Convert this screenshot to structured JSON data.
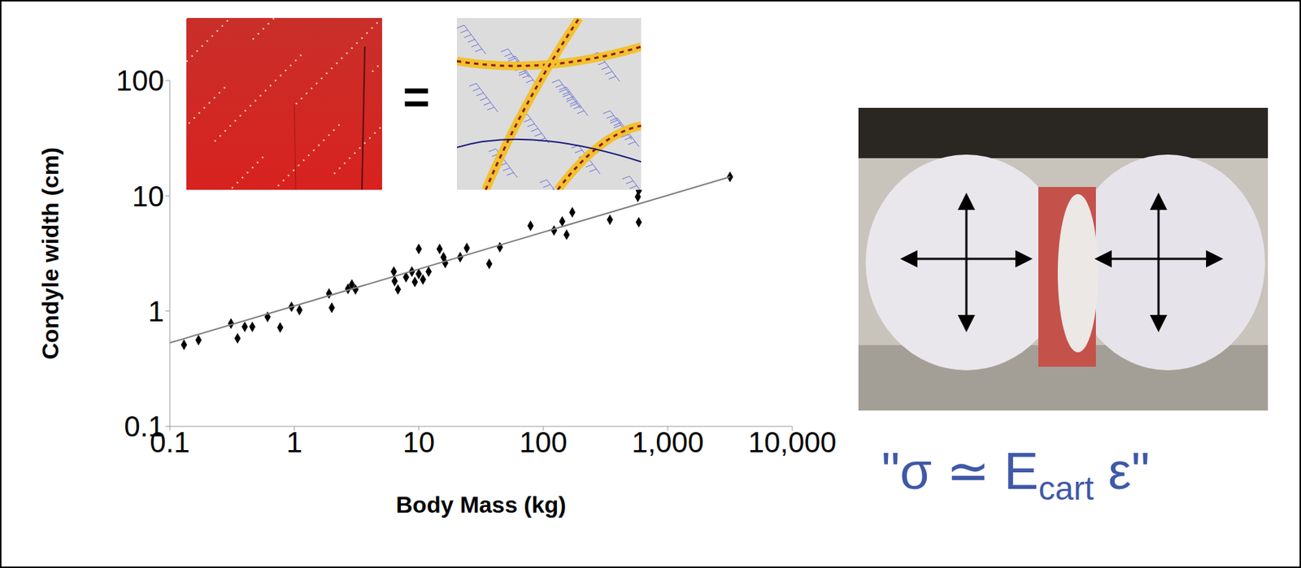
{
  "chart_data": {
    "type": "scatter",
    "xlabel": "Body Mass (kg)",
    "ylabel": "Condyle width (cm)",
    "log": true,
    "grid": false,
    "xlim": [
      0.1,
      10000
    ],
    "ylim": [
      0.1,
      100
    ],
    "xticks": [
      0.1,
      1,
      10,
      100,
      {
        "value": 1000,
        "label": "1,000"
      },
      {
        "value": 10000,
        "label": "10,000"
      }
    ],
    "yticks": [
      0.1,
      1,
      10,
      100
    ],
    "series": [
      {
        "type": "scatter",
        "marker": "diamond",
        "color": "#000000",
        "x": [
          0.13,
          0.17,
          0.31,
          0.35,
          0.4,
          0.46,
          0.61,
          0.77,
          0.95,
          1.1,
          1.9,
          2.0,
          2.7,
          2.9,
          3.1,
          6.3,
          6.4,
          6.8,
          7.9,
          8.8,
          9.3,
          10,
          10,
          10.8,
          12,
          14.7,
          15.8,
          16.3,
          21.5,
          24.3,
          36.8,
          44.8,
          79,
          122,
          142,
          154,
          171,
          343,
          585,
          585,
          575,
          3162
        ],
        "values": [
          0.51,
          0.56,
          0.78,
          0.58,
          0.73,
          0.73,
          0.89,
          0.72,
          1.09,
          1.02,
          1.42,
          1.07,
          1.56,
          1.7,
          1.54,
          2.2,
          1.82,
          1.54,
          1.97,
          2.2,
          1.79,
          3.46,
          2.1,
          1.88,
          2.2,
          3.46,
          2.93,
          2.61,
          2.93,
          3.52,
          2.57,
          3.58,
          5.5,
          5.0,
          6.0,
          4.6,
          7.2,
          6.2,
          11.1,
          5.9,
          9.8,
          14.6
        ]
      },
      {
        "type": "line",
        "line_style": "solid",
        "color": "#7f7f7f",
        "x": [
          0.1,
          3162
        ],
        "values": [
          0.53,
          14.6
        ]
      }
    ],
    "annotations": {
      "equals": "=",
      "equation": {
        "prefix": "\"σ ≃ E",
        "subscript": "cart",
        "suffix": " ε\""
      }
    }
  }
}
